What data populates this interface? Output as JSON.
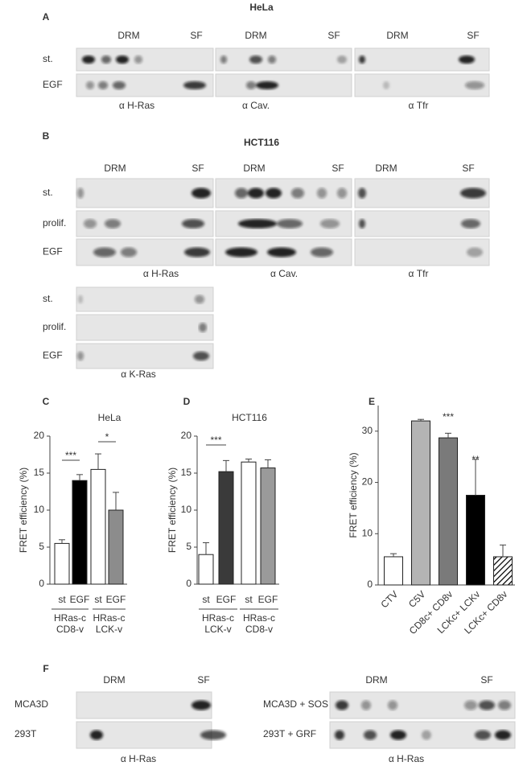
{
  "panel_a": {
    "label": "A",
    "title": "HeLa",
    "headers": [
      "DRM",
      "SF",
      "DRM",
      "SF",
      "DRM",
      "SF"
    ],
    "rows": [
      "st.",
      "EGF"
    ],
    "antibodies": [
      "α H-Ras",
      "α Cav.",
      "α Tfr"
    ]
  },
  "panel_b": {
    "label": "B",
    "title": "HCT116",
    "headers": [
      "DRM",
      "SF",
      "DRM",
      "SF",
      "DRM",
      "SF"
    ],
    "rows": [
      "st.",
      "prolif.",
      "EGF"
    ],
    "antibodies": [
      "α H-Ras",
      "α Cav.",
      "α Tfr"
    ],
    "kras_rows": [
      "st.",
      "prolif.",
      "EGF"
    ],
    "kras_antibody": "α K-Ras"
  },
  "chart_data": [
    {
      "type": "bar",
      "panel": "C",
      "title": "HeLa",
      "ylabel": "FRET efficiency (%)",
      "categories": [
        "st",
        "EGF",
        "st",
        "EGF"
      ],
      "values": [
        5.5,
        14,
        15.5,
        10
      ],
      "errors": [
        0.5,
        0.8,
        2.1,
        2.4
      ],
      "fills": [
        "#ffffff",
        "#000000",
        "#ffffff",
        "#8c8c8c"
      ],
      "ylim": [
        0,
        20
      ],
      "yticks": [
        0,
        5,
        10,
        15,
        20
      ],
      "groups": [
        [
          "HRas-c",
          "CD8-v"
        ],
        [
          "HRas-c",
          "LCK-v"
        ]
      ],
      "annotations": [
        "***",
        "*"
      ]
    },
    {
      "type": "bar",
      "panel": "D",
      "title": "HCT116",
      "ylabel": "FRET efficiency (%)",
      "categories": [
        "st",
        "EGF",
        "st",
        "EGF"
      ],
      "values": [
        4,
        15.2,
        16.5,
        15.7
      ],
      "errors": [
        1.6,
        1.5,
        0.4,
        1.1
      ],
      "fills": [
        "#ffffff",
        "#3a3a3a",
        "#ffffff",
        "#9a9a9a"
      ],
      "ylim": [
        0,
        20
      ],
      "yticks": [
        0,
        5,
        10,
        15,
        20
      ],
      "groups": [
        [
          "HRas-c",
          "LCK-v"
        ],
        [
          "HRas-c",
          "CD8-v"
        ]
      ],
      "annotations": [
        "***"
      ]
    },
    {
      "type": "bar",
      "panel": "E",
      "ylabel": "FRET efficiency (%)",
      "categories": [
        "CTV",
        "C5V",
        "CD8c+ CD8v",
        "LCKc+ LCKv",
        "LCKc+ CD8v"
      ],
      "values": [
        5.5,
        32,
        28.7,
        17.5,
        5.5
      ],
      "errors": [
        0.6,
        0.3,
        0.9,
        7,
        2.3
      ],
      "fills": [
        "#ffffff",
        "#b4b4b4",
        "#7a7a7a",
        "#000000",
        "hatch"
      ],
      "ylim": [
        0,
        35
      ],
      "yticks": [
        0,
        10,
        20,
        30
      ],
      "annotations": [
        "***",
        "**"
      ]
    }
  ],
  "panel_f": {
    "label": "F",
    "headers": [
      "DRM",
      "SF",
      "DRM",
      "SF"
    ],
    "rows_left": [
      "MCA3D",
      "293T"
    ],
    "rows_right": [
      "MCA3D + SOS",
      "293T + GRF"
    ],
    "antibodies": [
      "α H-Ras",
      "α H-Ras"
    ]
  }
}
